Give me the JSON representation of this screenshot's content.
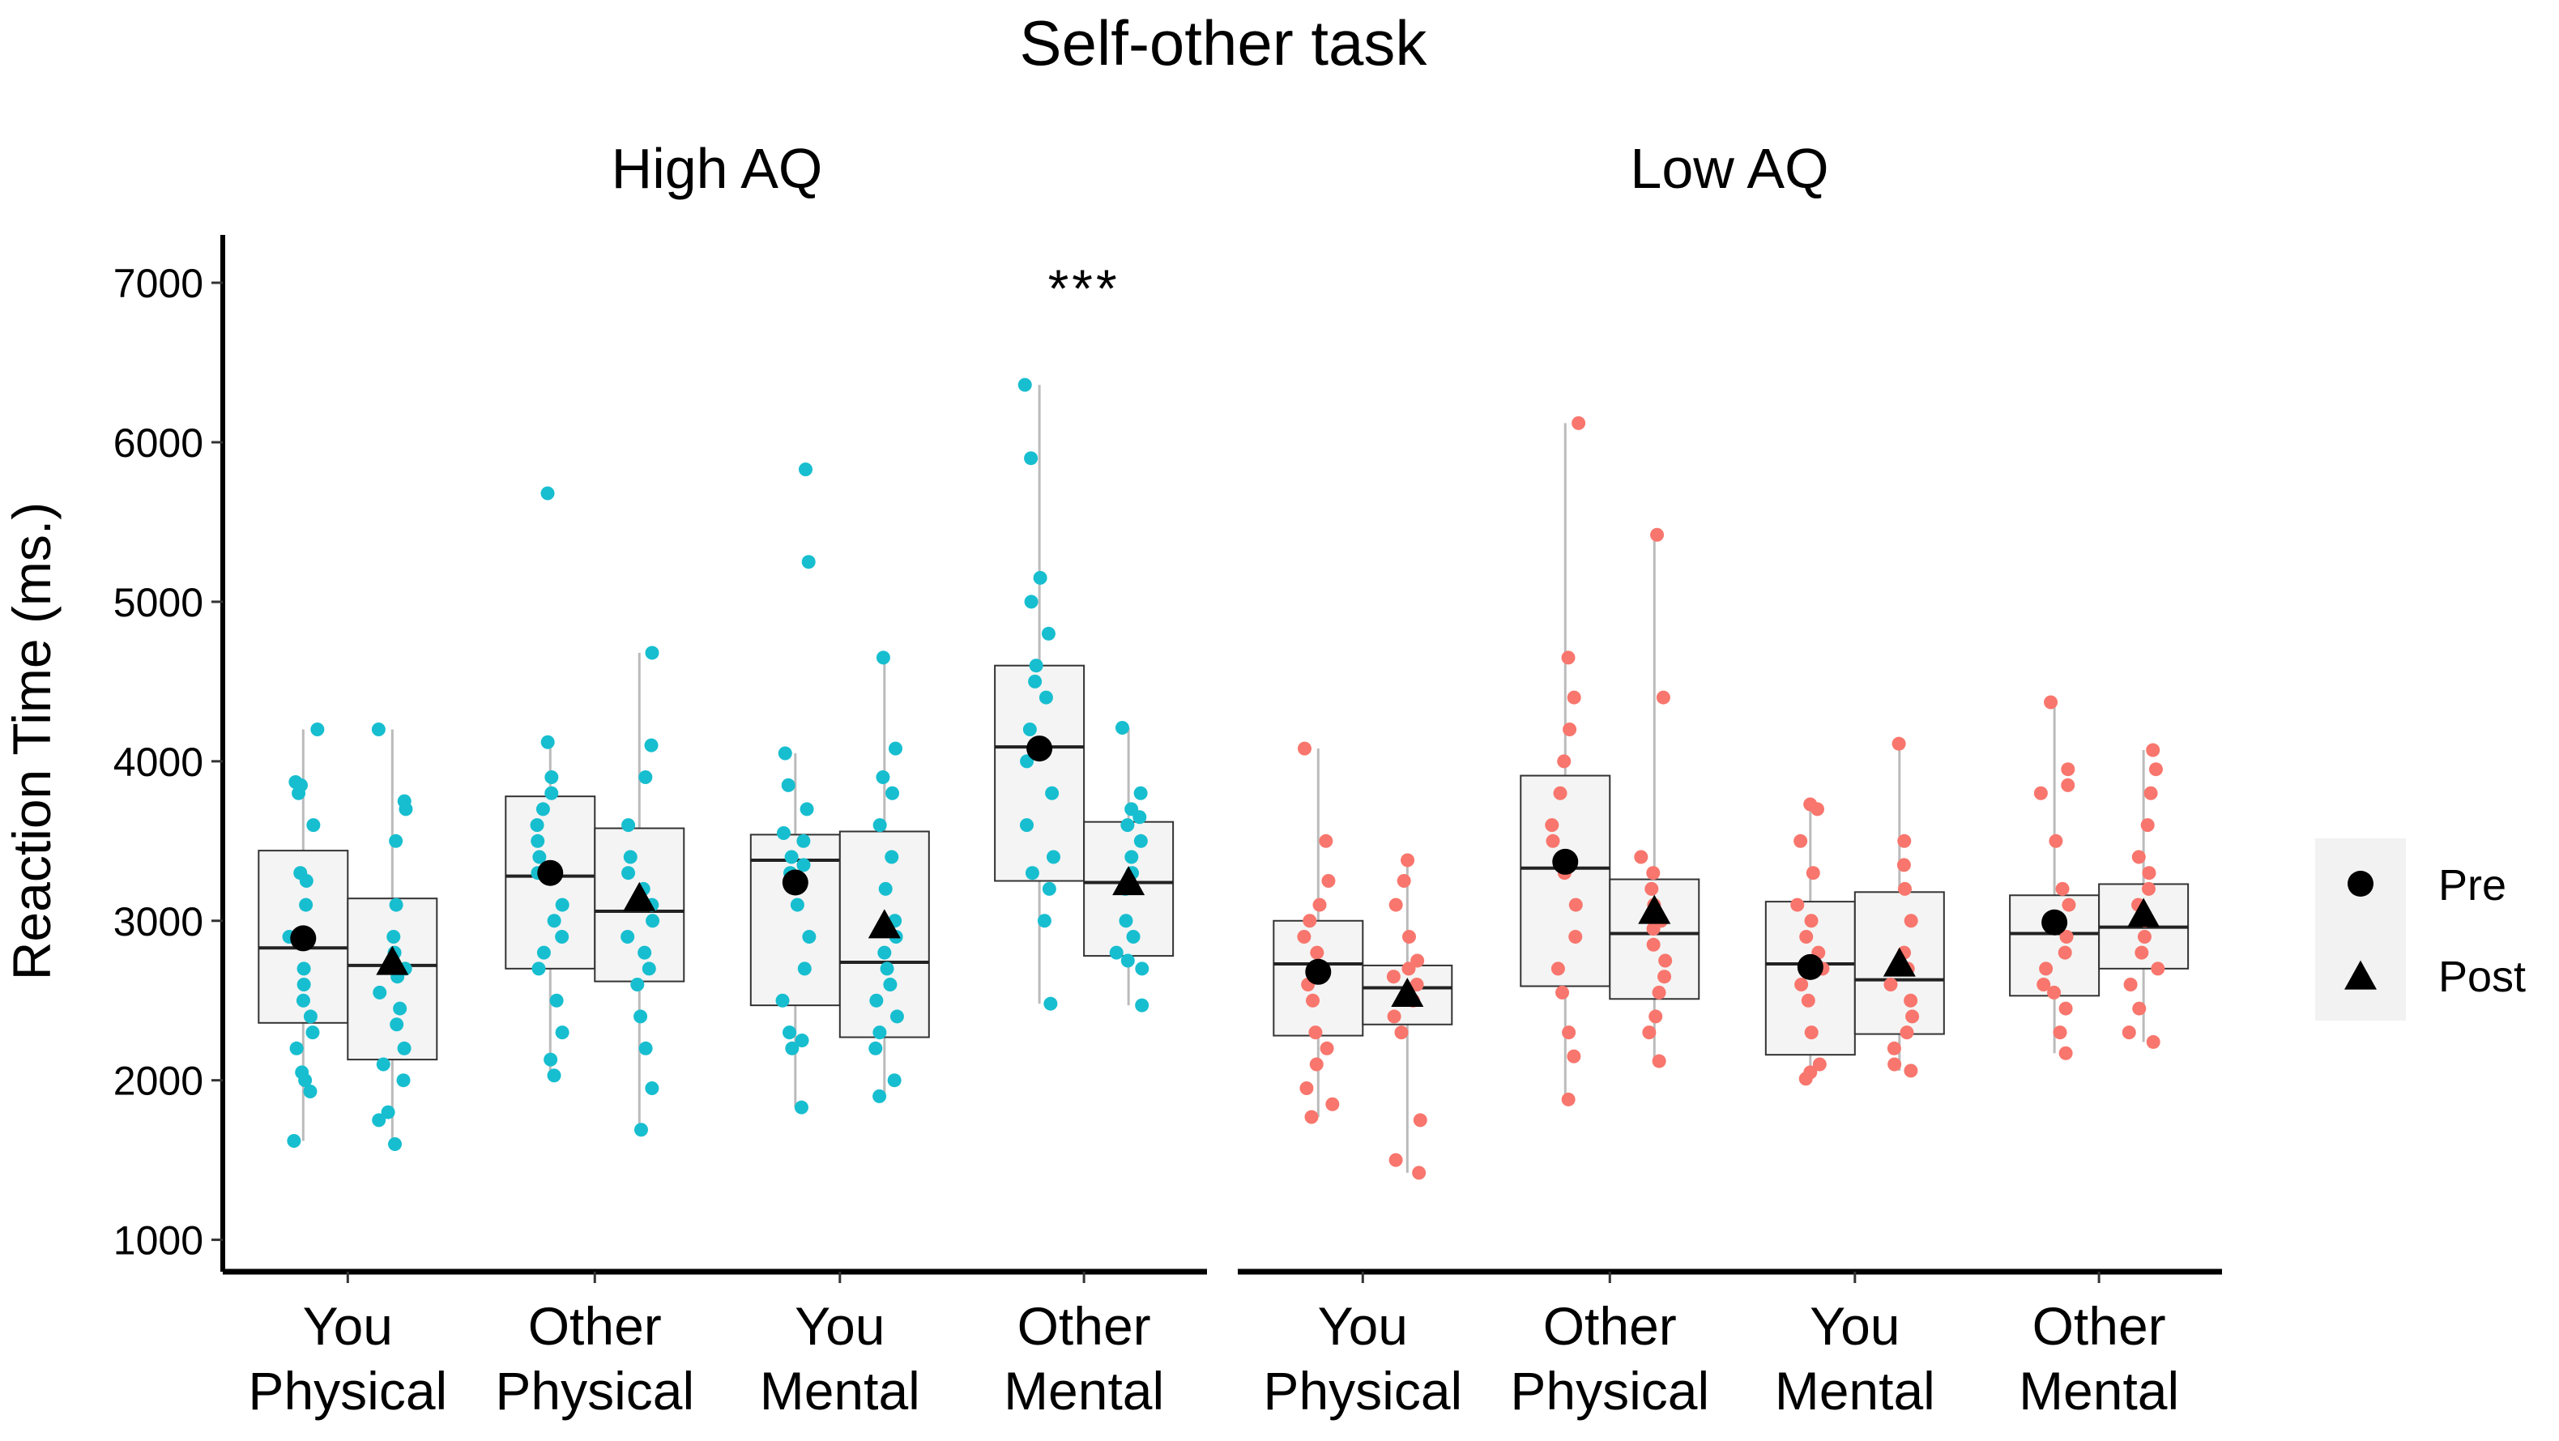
{
  "chart_data": {
    "type": "boxplot",
    "title": "Self-other task",
    "ylabel": "Reaction Time (ms.)",
    "xlabel": "",
    "ylim": [
      800,
      7300
    ],
    "yticks": [
      1000,
      2000,
      3000,
      4000,
      5000,
      6000,
      7000
    ],
    "categories": [
      {
        "line1": "You",
        "line2": "Physical"
      },
      {
        "line1": "Other",
        "line2": "Physical"
      },
      {
        "line1": "You",
        "line2": "Mental"
      },
      {
        "line1": "Other",
        "line2": "Mental"
      }
    ],
    "legend": {
      "position": "right",
      "entries": [
        {
          "label": "Pre",
          "shape": "circle"
        },
        {
          "label": "Post",
          "shape": "triangle"
        }
      ]
    },
    "colors": {
      "High AQ": "#17BECF",
      "Low AQ": "#F8766D",
      "box_fill": "#F2F2F2",
      "box_line": "#333333",
      "whisker": "#BBBBBB",
      "mean_marker": "#000000"
    },
    "panels": [
      {
        "name": "High AQ",
        "annotations": [
          {
            "category": 3,
            "y": 7000,
            "text": "***"
          }
        ],
        "boxes": [
          {
            "category": 0,
            "session": "Pre",
            "q1": 2360,
            "median": 2830,
            "q3": 3440,
            "wmin": 1620,
            "wmax": 4200,
            "mean": 2890,
            "points": [
              1620,
              1930,
              2000,
              2050,
              2200,
              2300,
              2400,
              2500,
              2600,
              2700,
              2900,
              3100,
              3250,
              3300,
              3600,
              3800,
              3850,
              3870,
              4200
            ]
          },
          {
            "category": 0,
            "session": "Post",
            "q1": 2130,
            "median": 2720,
            "q3": 3140,
            "wmin": 1600,
            "wmax": 4200,
            "mean": 2730,
            "points": [
              1600,
              1750,
              1800,
              2000,
              2100,
              2200,
              2350,
              2450,
              2550,
              2650,
              2700,
              2800,
              2900,
              3100,
              3500,
              3700,
              3750,
              4200
            ]
          },
          {
            "category": 1,
            "session": "Pre",
            "q1": 2700,
            "median": 3280,
            "q3": 3780,
            "wmin": 2030,
            "wmax": 4120,
            "mean": 3300,
            "points": [
              2030,
              2130,
              2300,
              2500,
              2700,
              2800,
              2900,
              3000,
              3100,
              3300,
              3400,
              3500,
              3600,
              3700,
              3800,
              3900,
              4120,
              5680
            ]
          },
          {
            "category": 1,
            "session": "Post",
            "q1": 2620,
            "median": 3060,
            "q3": 3580,
            "wmin": 1690,
            "wmax": 4680,
            "mean": 3130,
            "points": [
              1690,
              1950,
              2200,
              2400,
              2600,
              2700,
              2800,
              2900,
              3000,
              3100,
              3200,
              3300,
              3400,
              3600,
              3900,
              4100,
              4680
            ]
          },
          {
            "category": 2,
            "session": "Pre",
            "q1": 2470,
            "median": 3380,
            "q3": 3540,
            "wmin": 1830,
            "wmax": 4050,
            "mean": 3240,
            "points": [
              1830,
              2200,
              2250,
              2300,
              2500,
              2700,
              2900,
              3100,
              3300,
              3350,
              3400,
              3500,
              3550,
              3700,
              3850,
              4050,
              5250,
              5830
            ]
          },
          {
            "category": 2,
            "session": "Post",
            "q1": 2270,
            "median": 2740,
            "q3": 3560,
            "wmin": 1900,
            "wmax": 4650,
            "mean": 2960,
            "points": [
              1900,
              2000,
              2200,
              2300,
              2400,
              2500,
              2600,
              2700,
              2800,
              2900,
              3000,
              3200,
              3400,
              3600,
              3800,
              3900,
              4080,
              4650
            ]
          },
          {
            "category": 3,
            "session": "Pre",
            "q1": 3250,
            "median": 4090,
            "q3": 4600,
            "wmin": 2480,
            "wmax": 6360,
            "mean": 4080,
            "points": [
              2480,
              3000,
              3200,
              3300,
              3400,
              3600,
              3800,
              4000,
              4200,
              4400,
              4500,
              4600,
              4800,
              5000,
              5150,
              5900,
              6360
            ]
          },
          {
            "category": 3,
            "session": "Post",
            "q1": 2780,
            "median": 3240,
            "q3": 3620,
            "wmin": 2470,
            "wmax": 4210,
            "mean": 3230,
            "points": [
              2470,
              2700,
              2750,
              2800,
              2900,
              3000,
              3200,
              3300,
              3400,
              3500,
              3600,
              3650,
              3700,
              3800,
              4210
            ]
          }
        ]
      },
      {
        "name": "Low AQ",
        "annotations": [],
        "boxes": [
          {
            "category": 0,
            "session": "Pre",
            "q1": 2280,
            "median": 2730,
            "q3": 3000,
            "wmin": 1770,
            "wmax": 4080,
            "mean": 2680,
            "points": [
              1770,
              1850,
              1950,
              2100,
              2200,
              2300,
              2500,
              2600,
              2700,
              2800,
              2900,
              3000,
              3100,
              3250,
              3500,
              4080
            ]
          },
          {
            "category": 0,
            "session": "Post",
            "q1": 2350,
            "median": 2580,
            "q3": 2720,
            "wmin": 1420,
            "wmax": 3380,
            "mean": 2530,
            "points": [
              1420,
              1500,
              1750,
              2300,
              2400,
              2500,
              2600,
              2650,
              2700,
              2750,
              2900,
              3100,
              3250,
              3380
            ]
          },
          {
            "category": 1,
            "session": "Pre",
            "q1": 2590,
            "median": 3330,
            "q3": 3910,
            "wmin": 1880,
            "wmax": 6120,
            "mean": 3370,
            "points": [
              1880,
              2150,
              2300,
              2550,
              2700,
              2900,
              3100,
              3300,
              3500,
              3600,
              3800,
              4000,
              4200,
              4400,
              4650,
              6120
            ]
          },
          {
            "category": 1,
            "session": "Post",
            "q1": 2510,
            "median": 2920,
            "q3": 3260,
            "wmin": 2120,
            "wmax": 5420,
            "mean": 3050,
            "points": [
              2120,
              2300,
              2400,
              2550,
              2650,
              2750,
              2850,
              2950,
              3000,
              3100,
              3200,
              3300,
              3400,
              4400,
              5420
            ]
          },
          {
            "category": 2,
            "session": "Pre",
            "q1": 2160,
            "median": 2730,
            "q3": 3120,
            "wmin": 2010,
            "wmax": 3730,
            "mean": 2710,
            "points": [
              2010,
              2050,
              2100,
              2300,
              2500,
              2600,
              2700,
              2800,
              2900,
              3000,
              3100,
              3300,
              3500,
              3700,
              3730
            ]
          },
          {
            "category": 2,
            "session": "Post",
            "q1": 2290,
            "median": 2630,
            "q3": 3180,
            "wmin": 2060,
            "wmax": 4110,
            "mean": 2720,
            "points": [
              2060,
              2100,
              2200,
              2300,
              2400,
              2500,
              2600,
              2700,
              2800,
              3000,
              3200,
              3350,
              3500,
              4110
            ]
          },
          {
            "category": 3,
            "session": "Pre",
            "q1": 2530,
            "median": 2920,
            "q3": 3160,
            "wmin": 2170,
            "wmax": 4370,
            "mean": 2990,
            "points": [
              2170,
              2300,
              2450,
              2550,
              2600,
              2700,
              2800,
              2900,
              3000,
              3100,
              3200,
              3500,
              3800,
              3850,
              3950,
              4370
            ]
          },
          {
            "category": 3,
            "session": "Post",
            "q1": 2700,
            "median": 2960,
            "q3": 3230,
            "wmin": 2240,
            "wmax": 4070,
            "mean": 3030,
            "points": [
              2240,
              2300,
              2450,
              2600,
              2700,
              2800,
              2900,
              3000,
              3100,
              3200,
              3300,
              3400,
              3600,
              3800,
              3950,
              4070
            ]
          }
        ]
      }
    ]
  }
}
